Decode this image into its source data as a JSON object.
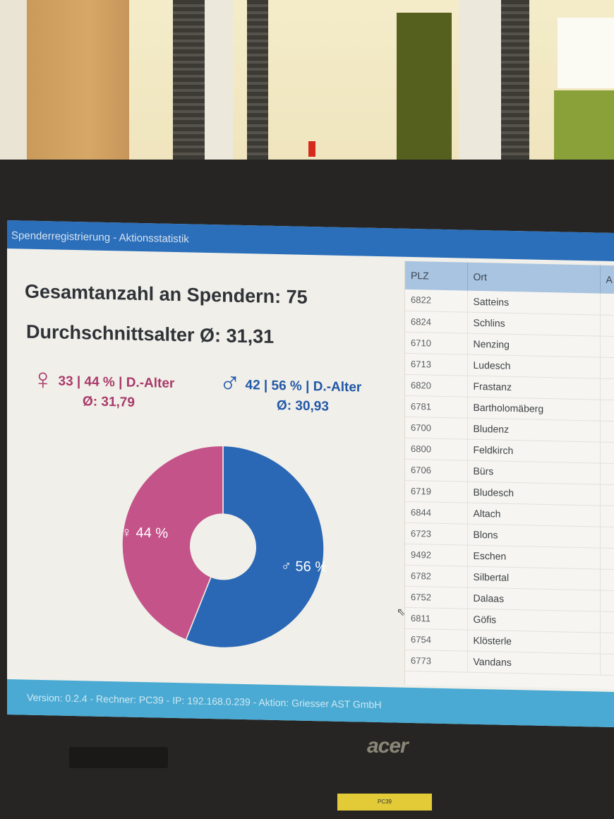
{
  "window": {
    "title": "Spenderregistrierung - Aktionsstatistik"
  },
  "summary": {
    "total_label": "Gesamtanzahl an Spendern: 75",
    "avg_age_label": "Durchschnittsalter Ø: 31,31"
  },
  "gender": {
    "female": {
      "symbol": "♀",
      "line1": "33 | 44 % | D.-Alter",
      "line2": "Ø: 31,79",
      "color": "#a83a6a"
    },
    "male": {
      "symbol": "♂",
      "line1": "42 | 56 % | D.-Alter",
      "line2": "Ø: 30,93",
      "color": "#2158a8"
    }
  },
  "chart_data": {
    "type": "pie",
    "variant": "donut",
    "title": "",
    "categories": [
      "♀ weiblich",
      "♂ männlich"
    ],
    "values": [
      44,
      56
    ],
    "counts": [
      33,
      42
    ],
    "labels": [
      "♀ 44 %",
      "♂ 56 %"
    ],
    "colors": [
      "#c4538a",
      "#2a68b5"
    ],
    "legend": "none"
  },
  "table": {
    "columns": [
      "PLZ",
      "Ort",
      "A"
    ],
    "rows": [
      {
        "plz": "6822",
        "ort": "Satteins"
      },
      {
        "plz": "6824",
        "ort": "Schlins"
      },
      {
        "plz": "6710",
        "ort": "Nenzing"
      },
      {
        "plz": "6713",
        "ort": "Ludesch"
      },
      {
        "plz": "6820",
        "ort": "Frastanz"
      },
      {
        "plz": "6781",
        "ort": "Bartholomäberg"
      },
      {
        "plz": "6700",
        "ort": "Bludenz"
      },
      {
        "plz": "6800",
        "ort": "Feldkirch"
      },
      {
        "plz": "6706",
        "ort": "Bürs"
      },
      {
        "plz": "6719",
        "ort": "Bludesch"
      },
      {
        "plz": "6844",
        "ort": "Altach"
      },
      {
        "plz": "6723",
        "ort": "Blons"
      },
      {
        "plz": "9492",
        "ort": "Eschen"
      },
      {
        "plz": "6782",
        "ort": "Silbertal"
      },
      {
        "plz": "6752",
        "ort": "Dalaas"
      },
      {
        "plz": "6811",
        "ort": "Göfis"
      },
      {
        "plz": "6754",
        "ort": "Klösterle"
      },
      {
        "plz": "6773",
        "ort": "Vandans"
      }
    ]
  },
  "statusbar": {
    "text": "Version: 0.2.4 - Rechner: PC39 - IP: 192.168.0.239 - Aktion: Griesser AST GmbH"
  },
  "hardware": {
    "brand": "acer",
    "asset_label": "PC39"
  }
}
